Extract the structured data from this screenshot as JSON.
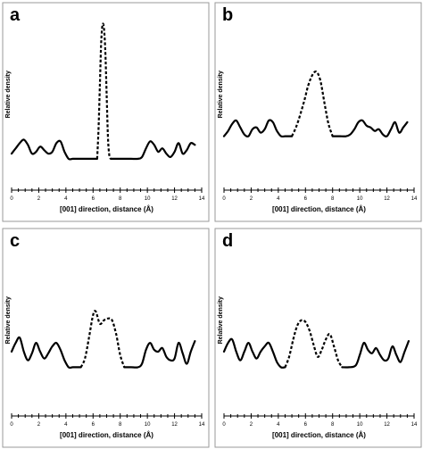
{
  "chart_data": [
    {
      "type": "line",
      "panel_label": "a",
      "xlabel": "[001] direction, distance (Å)",
      "ylabel": "Relative density",
      "xlim": [
        0,
        14
      ],
      "x_ticks": [
        "0",
        "2",
        "4",
        "6",
        "8",
        "10",
        "12",
        "14"
      ],
      "grid": false,
      "series": [
        {
          "style": "solid",
          "x": [
            0,
            0.3,
            0.6,
            0.9,
            1.2,
            1.5,
            1.8,
            2.1,
            2.4,
            2.7,
            3.0,
            3.3,
            3.6,
            3.9,
            4.2,
            4.5,
            4.8,
            5.1,
            5.4,
            5.7,
            6.0,
            6.3
          ],
          "y": [
            0.21,
            0.24,
            0.27,
            0.29,
            0.26,
            0.21,
            0.22,
            0.25,
            0.23,
            0.21,
            0.22,
            0.27,
            0.28,
            0.22,
            0.18,
            0.18,
            0.18,
            0.18,
            0.18,
            0.18,
            0.18,
            0.18
          ]
        },
        {
          "style": "dashed",
          "x": [
            6.3,
            6.4,
            6.5,
            6.6,
            6.7,
            6.8,
            6.9,
            7.0,
            7.1,
            7.2,
            7.3
          ],
          "y": [
            0.18,
            0.35,
            0.6,
            0.85,
            0.95,
            0.93,
            0.8,
            0.55,
            0.3,
            0.2,
            0.18
          ]
        },
        {
          "style": "solid",
          "x": [
            7.3,
            7.8,
            8.3,
            8.8,
            9.3,
            9.6,
            9.9,
            10.2,
            10.5,
            10.8,
            11.1,
            11.4,
            11.7,
            12.0,
            12.3,
            12.6,
            12.9,
            13.2,
            13.5
          ],
          "y": [
            0.18,
            0.18,
            0.18,
            0.18,
            0.18,
            0.19,
            0.24,
            0.28,
            0.26,
            0.22,
            0.24,
            0.21,
            0.19,
            0.22,
            0.27,
            0.21,
            0.23,
            0.27,
            0.26
          ]
        }
      ]
    },
    {
      "type": "line",
      "panel_label": "b",
      "xlabel": "[001] direction, distance (Å)",
      "ylabel": "Relative density",
      "xlim": [
        0,
        14
      ],
      "x_ticks": [
        "0",
        "2",
        "4",
        "6",
        "8",
        "10",
        "12",
        "14"
      ],
      "grid": false,
      "series": [
        {
          "style": "solid",
          "x": [
            0,
            0.3,
            0.6,
            0.9,
            1.2,
            1.5,
            1.8,
            2.1,
            2.4,
            2.7,
            3.0,
            3.3,
            3.6,
            3.9,
            4.2,
            4.5,
            4.8,
            5.0
          ],
          "y": [
            0.31,
            0.34,
            0.38,
            0.4,
            0.36,
            0.32,
            0.31,
            0.35,
            0.36,
            0.33,
            0.35,
            0.4,
            0.39,
            0.34,
            0.31,
            0.31,
            0.31,
            0.31
          ]
        },
        {
          "style": "dashed",
          "x": [
            5.0,
            5.3,
            5.6,
            5.9,
            6.2,
            6.5,
            6.8,
            7.1,
            7.4,
            7.7,
            8.0
          ],
          "y": [
            0.31,
            0.36,
            0.43,
            0.51,
            0.6,
            0.66,
            0.68,
            0.63,
            0.5,
            0.38,
            0.31
          ]
        },
        {
          "style": "solid",
          "x": [
            8.0,
            8.5,
            9.0,
            9.3,
            9.6,
            9.9,
            10.2,
            10.5,
            10.8,
            11.1,
            11.4,
            11.7,
            12.0,
            12.3,
            12.6,
            12.9,
            13.2,
            13.5
          ],
          "y": [
            0.31,
            0.31,
            0.31,
            0.32,
            0.35,
            0.39,
            0.4,
            0.37,
            0.36,
            0.34,
            0.35,
            0.32,
            0.31,
            0.35,
            0.39,
            0.33,
            0.36,
            0.39
          ]
        }
      ]
    },
    {
      "type": "line",
      "panel_label": "c",
      "xlabel": "[001] direction, distance (Å)",
      "ylabel": "Relative density",
      "xlim": [
        0,
        14
      ],
      "x_ticks": [
        "0",
        "2",
        "4",
        "6",
        "8",
        "10",
        "12",
        "14"
      ],
      "grid": false,
      "series": [
        {
          "style": "solid",
          "x": [
            0,
            0.3,
            0.6,
            0.9,
            1.2,
            1.5,
            1.8,
            2.1,
            2.4,
            2.7,
            3.0,
            3.3,
            3.6,
            3.9,
            4.2,
            4.5,
            4.8,
            5.1
          ],
          "y": [
            0.37,
            0.42,
            0.45,
            0.37,
            0.32,
            0.36,
            0.42,
            0.37,
            0.33,
            0.36,
            0.4,
            0.42,
            0.38,
            0.32,
            0.28,
            0.28,
            0.28,
            0.28
          ]
        },
        {
          "style": "dashed",
          "x": [
            5.1,
            5.4,
            5.7,
            6.0,
            6.2,
            6.5,
            6.8,
            7.1,
            7.4,
            7.7,
            8.0,
            8.3
          ],
          "y": [
            0.28,
            0.33,
            0.45,
            0.58,
            0.6,
            0.53,
            0.55,
            0.56,
            0.55,
            0.47,
            0.35,
            0.28
          ]
        },
        {
          "style": "solid",
          "x": [
            8.3,
            8.8,
            9.3,
            9.6,
            9.9,
            10.2,
            10.5,
            10.8,
            11.1,
            11.4,
            11.7,
            12.0,
            12.3,
            12.6,
            12.9,
            13.2,
            13.5
          ],
          "y": [
            0.28,
            0.28,
            0.28,
            0.3,
            0.38,
            0.42,
            0.38,
            0.37,
            0.39,
            0.34,
            0.32,
            0.33,
            0.42,
            0.36,
            0.3,
            0.37,
            0.43
          ]
        }
      ]
    },
    {
      "type": "line",
      "panel_label": "d",
      "xlabel": "[001] direction, distance (Å)",
      "ylabel": "Relative density",
      "xlim": [
        0,
        14
      ],
      "x_ticks": [
        "0",
        "2",
        "4",
        "6",
        "8",
        "10",
        "12",
        "14"
      ],
      "grid": false,
      "series": [
        {
          "style": "solid",
          "x": [
            0,
            0.3,
            0.6,
            0.9,
            1.2,
            1.5,
            1.8,
            2.1,
            2.4,
            2.7,
            3.0,
            3.3,
            3.6,
            3.9,
            4.2,
            4.5
          ],
          "y": [
            0.37,
            0.42,
            0.44,
            0.37,
            0.32,
            0.37,
            0.42,
            0.37,
            0.33,
            0.37,
            0.4,
            0.42,
            0.37,
            0.31,
            0.28,
            0.28
          ]
        },
        {
          "style": "dashed",
          "x": [
            4.5,
            4.8,
            5.1,
            5.4,
            5.7,
            6.0,
            6.3,
            6.6,
            6.9,
            7.2,
            7.5,
            7.8,
            8.1,
            8.4,
            8.7
          ],
          "y": [
            0.28,
            0.34,
            0.44,
            0.52,
            0.55,
            0.54,
            0.49,
            0.41,
            0.34,
            0.38,
            0.44,
            0.47,
            0.4,
            0.32,
            0.28
          ]
        },
        {
          "style": "solid",
          "x": [
            8.7,
            9.2,
            9.7,
            10.0,
            10.3,
            10.6,
            10.9,
            11.2,
            11.5,
            11.8,
            12.1,
            12.4,
            12.7,
            13.0,
            13.3,
            13.6
          ],
          "y": [
            0.28,
            0.28,
            0.29,
            0.35,
            0.42,
            0.38,
            0.36,
            0.39,
            0.35,
            0.32,
            0.33,
            0.4,
            0.35,
            0.31,
            0.37,
            0.43
          ]
        }
      ]
    }
  ]
}
